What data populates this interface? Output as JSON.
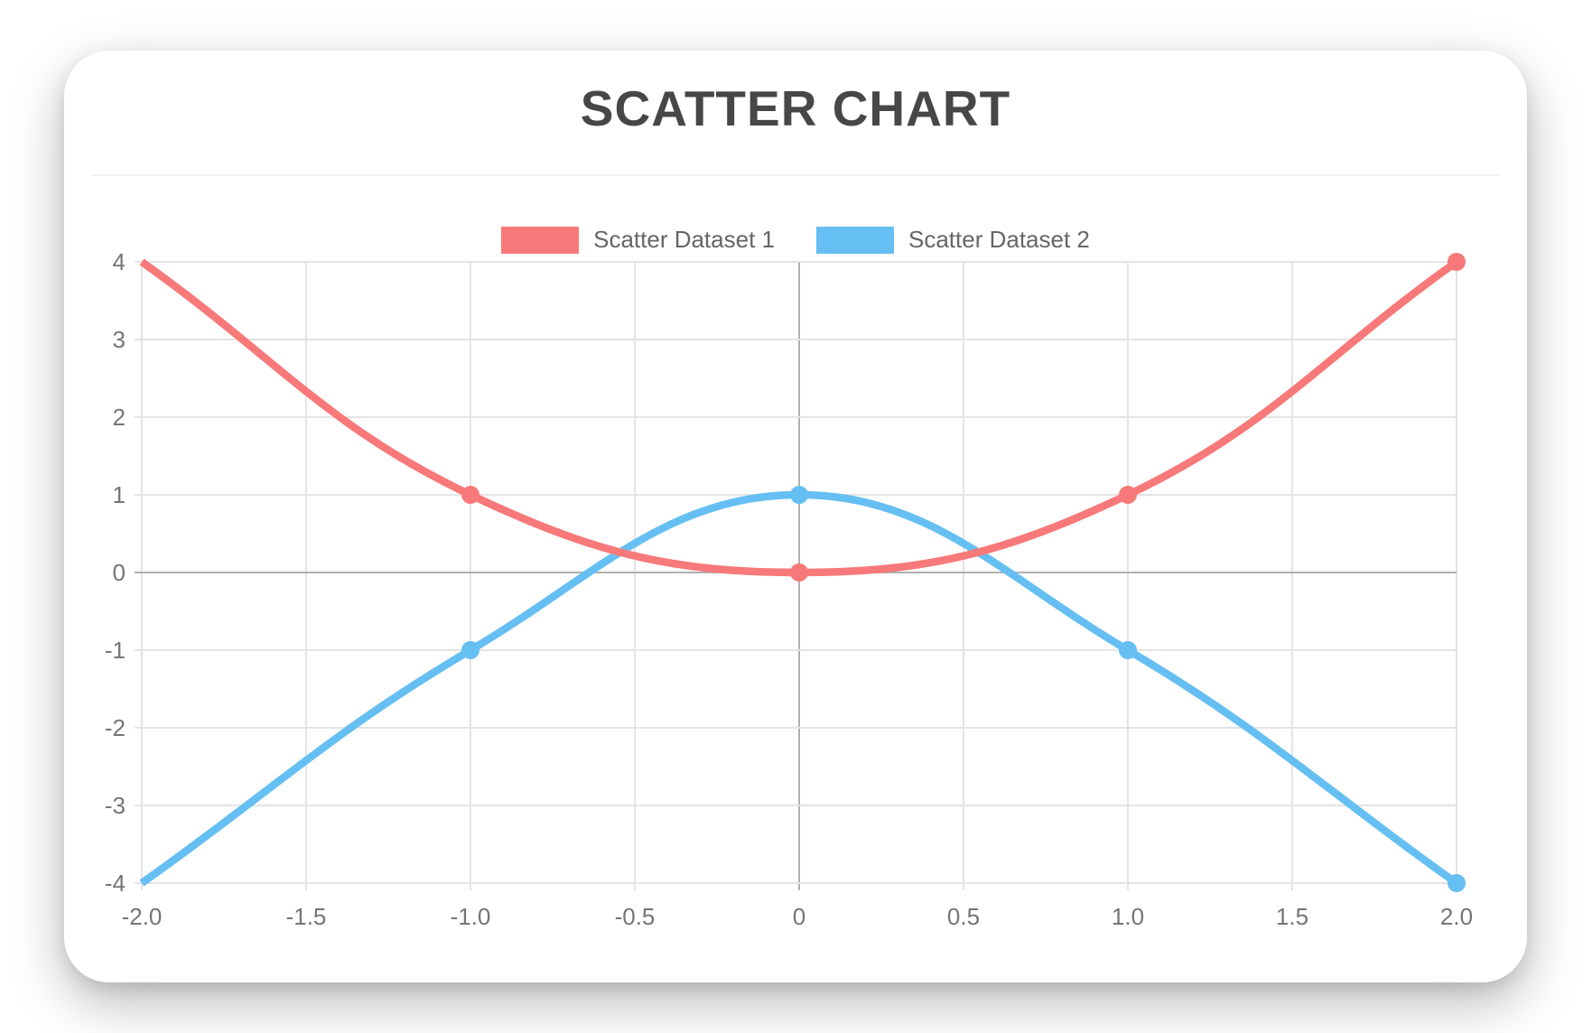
{
  "chart_data": {
    "type": "scatter",
    "title": "SCATTER CHART",
    "show_line": true,
    "line_tension": 0.4,
    "grid": true,
    "legend_position": "top",
    "series": [
      {
        "name": "Scatter Dataset 1",
        "color": "#f87979",
        "points": [
          {
            "x": -2,
            "y": 4
          },
          {
            "x": -1,
            "y": 1
          },
          {
            "x": 0,
            "y": 0
          },
          {
            "x": 1,
            "y": 1
          },
          {
            "x": 2,
            "y": 4
          }
        ]
      },
      {
        "name": "Scatter Dataset 2",
        "color": "#66bff2",
        "points": [
          {
            "x": -2,
            "y": -4
          },
          {
            "x": -1,
            "y": -1
          },
          {
            "x": 0,
            "y": 1
          },
          {
            "x": 1,
            "y": -1
          },
          {
            "x": 2,
            "y": -4
          }
        ]
      }
    ],
    "x_axis": {
      "min": -2,
      "max": 2,
      "tick_step": 0.5,
      "tick_labels": [
        "-2.0",
        "-1.5",
        "-1.0",
        "-0.5",
        "0",
        "0.5",
        "1.0",
        "1.5",
        "2.0"
      ]
    },
    "y_axis": {
      "min": -4,
      "max": 4,
      "tick_step": 1,
      "tick_labels_top_to_bottom": [
        "4",
        "3",
        "2",
        "1",
        "0",
        "-1",
        "-2",
        "-3",
        "-4"
      ]
    },
    "colors": {
      "title_text": "#474747",
      "legend_text": "#666666",
      "axis_tick_text": "#757575",
      "grid_line": "#e4e4e4",
      "zero_line": "#b0b0b0",
      "card_background": "#ffffff"
    }
  }
}
